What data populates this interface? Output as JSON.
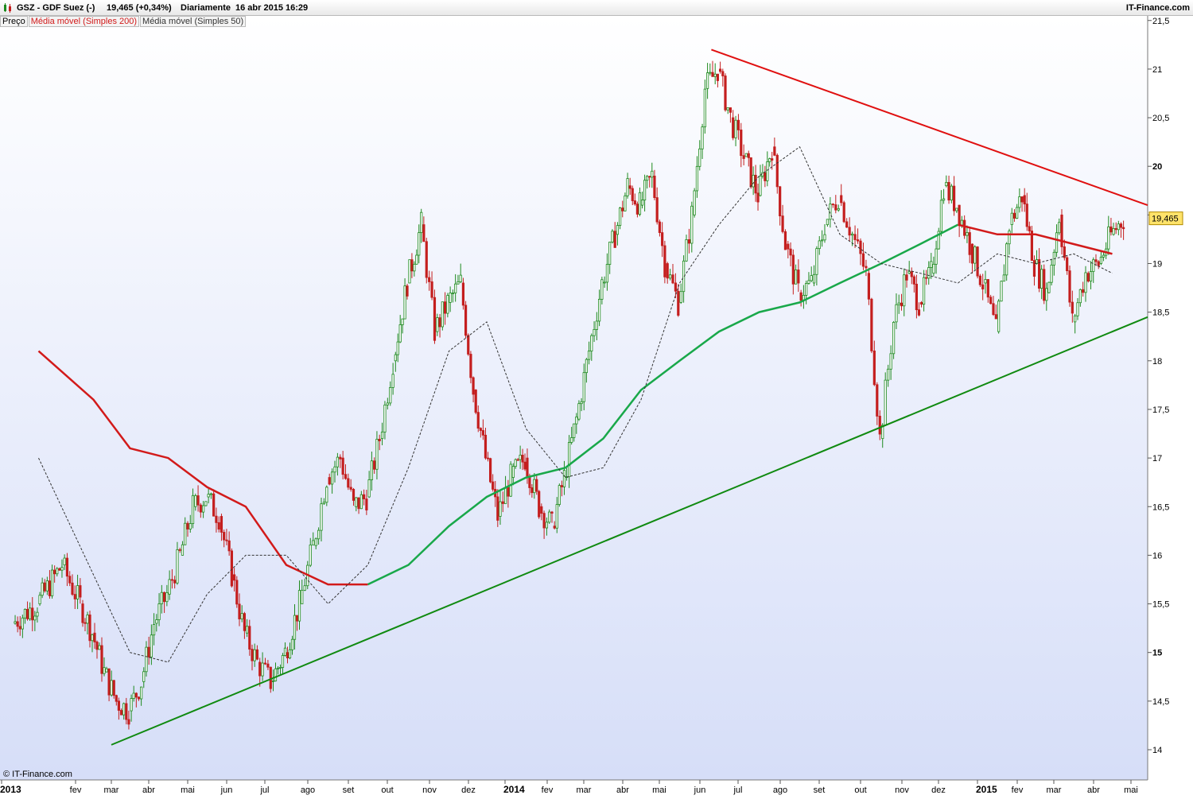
{
  "header": {
    "title": "GSZ - GDF Suez (-)",
    "quote": "19,465 (+0,34%)",
    "period": "Diariamente",
    "datetime": "16 abr 2015 16:29",
    "brand": "IT-Finance.com"
  },
  "legend": {
    "price": "Preço",
    "ma200": "Média móvel (Simples 200)",
    "ma50": "Média móvel (Simples 50)"
  },
  "footer": {
    "copyright": "© IT-Finance.com"
  },
  "colors": {
    "up_candle": "#1e8a1e",
    "down_candle": "#c41e1e",
    "ma200": "#d21a1a",
    "ma200_green": "#19a84a",
    "ma50": "#333333",
    "support_line": "#108a10",
    "resistance_line": "#e01010",
    "price_badge": "#ffe36a"
  },
  "chart_data": {
    "type": "line",
    "ylim": [
      13.7,
      21.5
    ],
    "y_ticks": [
      14,
      14.5,
      15,
      15.5,
      16,
      16.5,
      17,
      17.5,
      18,
      18.5,
      19,
      19.5,
      20,
      20.5,
      21,
      21.5
    ],
    "y_tick_labels": [
      "14",
      "14,5",
      "15",
      "15,5",
      "16",
      "16,5",
      "17",
      "17,5",
      "18",
      "18,5",
      "19",
      "19,5",
      "20",
      "20,5",
      "21",
      "21,5"
    ],
    "x_months": [
      "2013",
      "fev",
      "mar",
      "abr",
      "mai",
      "jun",
      "jul",
      "ago",
      "set",
      "out",
      "nov",
      "dez",
      "2014",
      "fev",
      "mar",
      "abr",
      "mai",
      "jun",
      "jul",
      "ago",
      "set",
      "out",
      "nov",
      "dez",
      "2015",
      "fev",
      "mar",
      "abr",
      "mai"
    ],
    "last_price_label": "19,465",
    "last_price": 19.465,
    "series": [
      {
        "name": "Preço",
        "points": [
          [
            "2013-01",
            15.3
          ],
          [
            "2013-01",
            15.5
          ],
          [
            "2013-01",
            15.9
          ],
          [
            "2013-02",
            15.5
          ],
          [
            "2013-02",
            15.2
          ],
          [
            "2013-02",
            14.8
          ],
          [
            "2013-03",
            14.5
          ],
          [
            "2013-03",
            14.4
          ],
          [
            "2013-03",
            14.7
          ],
          [
            "2013-04",
            15.3
          ],
          [
            "2013-04",
            15.6
          ],
          [
            "2013-04",
            16.0
          ],
          [
            "2013-05",
            16.5
          ],
          [
            "2013-05",
            16.6
          ],
          [
            "2013-05",
            16.4
          ],
          [
            "2013-06",
            15.8
          ],
          [
            "2013-06",
            15.2
          ],
          [
            "2013-06",
            14.9
          ],
          [
            "2013-07",
            14.7
          ],
          [
            "2013-07",
            15.0
          ],
          [
            "2013-07",
            15.5
          ],
          [
            "2013-08",
            16.1
          ],
          [
            "2013-08",
            16.8
          ],
          [
            "2013-08",
            17.0
          ],
          [
            "2013-09",
            16.5
          ],
          [
            "2013-09",
            16.6
          ],
          [
            "2013-09",
            17.2
          ],
          [
            "2013-10",
            18.0
          ],
          [
            "2013-10",
            18.8
          ],
          [
            "2013-10",
            19.4
          ],
          [
            "2013-11",
            18.3
          ],
          [
            "2013-11",
            18.6
          ],
          [
            "2013-11",
            18.8
          ],
          [
            "2013-12",
            17.7
          ],
          [
            "2013-12",
            17.0
          ],
          [
            "2013-12",
            16.4
          ],
          [
            "2014-01",
            16.8
          ],
          [
            "2014-01",
            17.0
          ],
          [
            "2014-01",
            16.5
          ],
          [
            "2014-02",
            16.3
          ],
          [
            "2014-02",
            16.8
          ],
          [
            "2014-02",
            17.4
          ],
          [
            "2014-03",
            18.1
          ],
          [
            "2014-03",
            18.8
          ],
          [
            "2014-03",
            19.3
          ],
          [
            "2014-04",
            19.8
          ],
          [
            "2014-04",
            19.6
          ],
          [
            "2014-04",
            19.9
          ],
          [
            "2014-05",
            19.0
          ],
          [
            "2014-05",
            18.6
          ],
          [
            "2014-05",
            19.5
          ],
          [
            "2014-06",
            20.8
          ],
          [
            "2014-06",
            21.0
          ],
          [
            "2014-06",
            20.5
          ],
          [
            "2014-07",
            20.1
          ],
          [
            "2014-07",
            19.7
          ],
          [
            "2014-07",
            20.2
          ],
          [
            "2014-08",
            19.2
          ],
          [
            "2014-08",
            18.7
          ],
          [
            "2014-08",
            18.8
          ],
          [
            "2014-09",
            19.4
          ],
          [
            "2014-09",
            19.7
          ],
          [
            "2014-09",
            19.3
          ],
          [
            "2014-10",
            18.9
          ],
          [
            "2014-10",
            17.2
          ],
          [
            "2014-10",
            18.4
          ],
          [
            "2014-11",
            18.9
          ],
          [
            "2014-11",
            18.6
          ],
          [
            "2014-11",
            18.9
          ],
          [
            "2014-12",
            19.8
          ],
          [
            "2014-12",
            19.6
          ],
          [
            "2014-12",
            19.2
          ],
          [
            "2015-01",
            18.8
          ],
          [
            "2015-01",
            18.3
          ],
          [
            "2015-01",
            19.4
          ],
          [
            "2015-02",
            19.7
          ],
          [
            "2015-02",
            19.0
          ],
          [
            "2015-02",
            18.7
          ],
          [
            "2015-03",
            19.5
          ],
          [
            "2015-03",
            18.4
          ],
          [
            "2015-03",
            18.9
          ],
          [
            "2015-04",
            19.0
          ],
          [
            "2015-04",
            19.3
          ],
          [
            "2015-04",
            19.465
          ]
        ]
      },
      {
        "name": "Média móvel (Simples 200)",
        "points": [
          [
            "2013-01",
            18.1
          ],
          [
            "2013-02",
            17.6
          ],
          [
            "2013-03",
            17.1
          ],
          [
            "2013-04",
            17.0
          ],
          [
            "2013-05",
            16.7
          ],
          [
            "2013-06",
            16.5
          ],
          [
            "2013-07",
            15.9
          ],
          [
            "2013-08",
            15.7
          ],
          [
            "2013-09",
            15.7
          ],
          [
            "2013-10",
            15.9
          ],
          [
            "2013-11",
            16.3
          ],
          [
            "2013-12",
            16.6
          ],
          [
            "2014-01",
            16.8
          ],
          [
            "2014-02",
            16.9
          ],
          [
            "2014-03",
            17.2
          ],
          [
            "2014-04",
            17.7
          ],
          [
            "2014-05",
            18.0
          ],
          [
            "2014-06",
            18.3
          ],
          [
            "2014-07",
            18.5
          ],
          [
            "2014-08",
            18.6
          ],
          [
            "2014-09",
            18.8
          ],
          [
            "2014-10",
            19.0
          ],
          [
            "2014-11",
            19.2
          ],
          [
            "2014-12",
            19.4
          ],
          [
            "2015-01",
            19.3
          ],
          [
            "2015-02",
            19.3
          ],
          [
            "2015-03",
            19.2
          ],
          [
            "2015-04",
            19.1
          ]
        ]
      },
      {
        "name": "Média móvel (Simples 50)",
        "points": [
          [
            "2013-01",
            17.0
          ],
          [
            "2013-02",
            15.8
          ],
          [
            "2013-03",
            15.0
          ],
          [
            "2013-04",
            14.9
          ],
          [
            "2013-05",
            15.6
          ],
          [
            "2013-06",
            16.0
          ],
          [
            "2013-07",
            16.0
          ],
          [
            "2013-08",
            15.5
          ],
          [
            "2013-09",
            15.9
          ],
          [
            "2013-10",
            16.9
          ],
          [
            "2013-11",
            18.1
          ],
          [
            "2013-12",
            18.4
          ],
          [
            "2014-01",
            17.3
          ],
          [
            "2014-02",
            16.8
          ],
          [
            "2014-03",
            16.9
          ],
          [
            "2014-04",
            17.6
          ],
          [
            "2014-05",
            18.8
          ],
          [
            "2014-06",
            19.4
          ],
          [
            "2014-07",
            19.9
          ],
          [
            "2014-08",
            20.2
          ],
          [
            "2014-09",
            19.3
          ],
          [
            "2014-10",
            19.0
          ],
          [
            "2014-11",
            18.9
          ],
          [
            "2014-12",
            18.8
          ],
          [
            "2015-01",
            19.1
          ],
          [
            "2015-02",
            19.0
          ],
          [
            "2015-03",
            19.1
          ],
          [
            "2015-04",
            18.9
          ]
        ]
      }
    ],
    "trendlines": [
      {
        "from": [
          "2013-03",
          14.05
        ],
        "to": [
          "2015-05",
          18.45
        ]
      },
      {
        "from": [
          "2014-06",
          21.2
        ],
        "to": [
          "2015-05",
          19.6
        ]
      }
    ]
  }
}
